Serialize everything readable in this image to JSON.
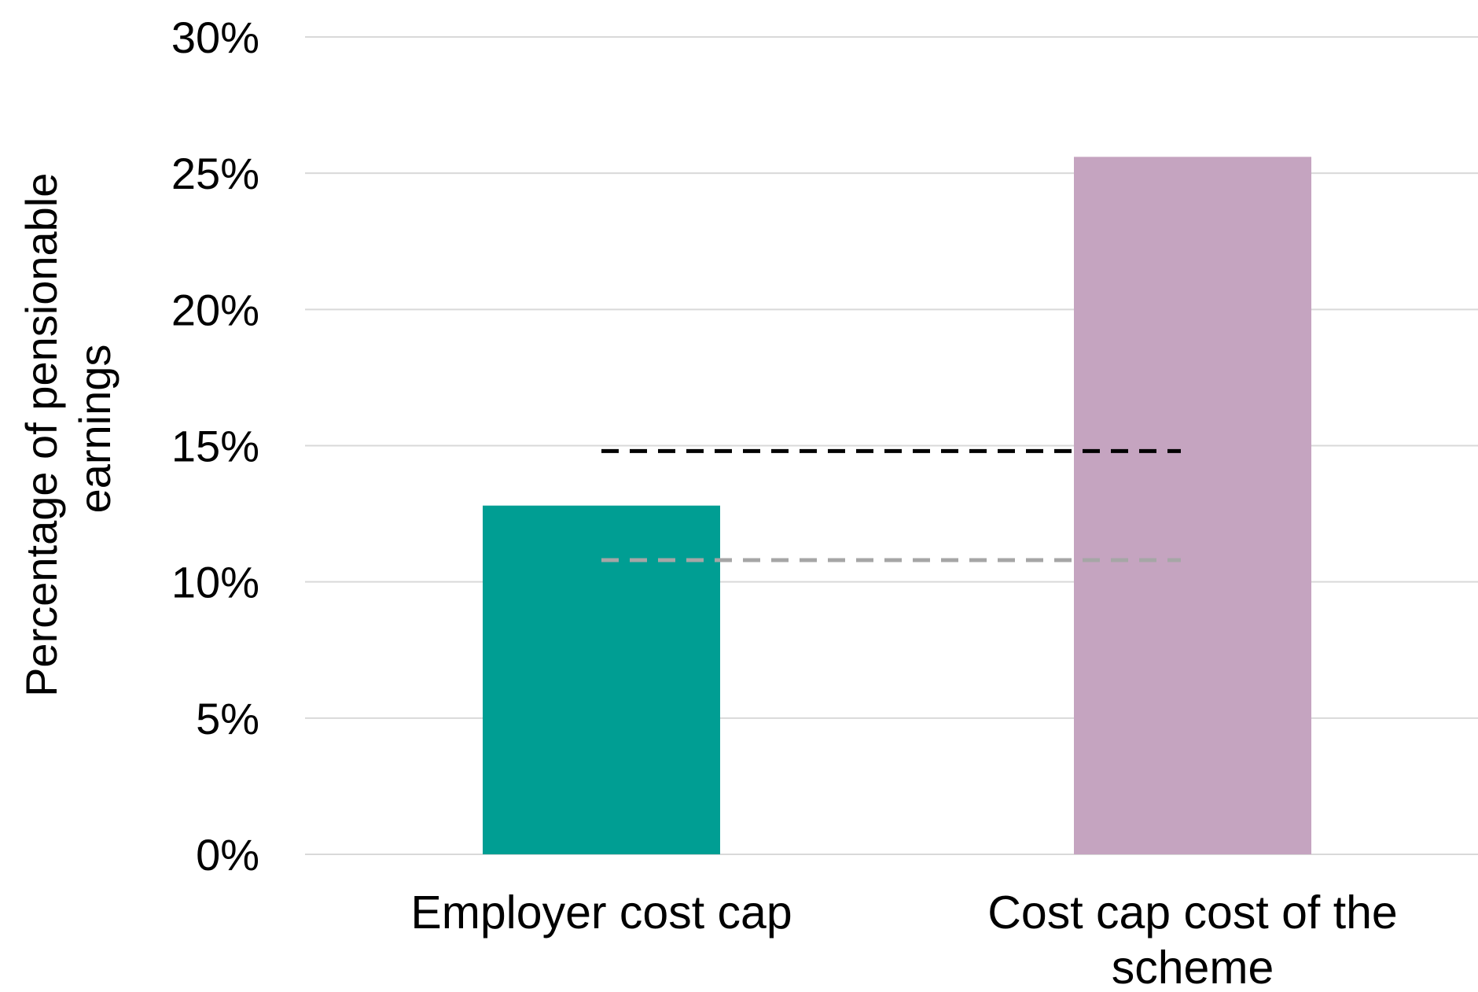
{
  "chart_data": {
    "type": "bar",
    "title": "",
    "xlabel": "",
    "ylabel_lines": [
      "Percentage of pensionable",
      "earnings"
    ],
    "categories": [
      "Employer cost cap",
      "Cost cap cost of the scheme"
    ],
    "category_label_lines": [
      [
        "Employer cost cap"
      ],
      [
        "Cost cap cost of the",
        "scheme"
      ]
    ],
    "values": [
      12.8,
      25.6
    ],
    "bar_colors": [
      "#009e93",
      "#c5a4c0"
    ],
    "ylim": [
      0,
      30
    ],
    "yticks": [
      0,
      5,
      10,
      15,
      20,
      25,
      30
    ],
    "ytick_labels": [
      "0%",
      "5%",
      "10%",
      "15%",
      "20%",
      "25%",
      "30%"
    ],
    "grid": true,
    "legend": "none",
    "reference_lines": [
      {
        "value": 14.8,
        "color": "#000000",
        "style": "dashed"
      },
      {
        "value": 10.8,
        "color": "#a6a6a6",
        "style": "dashed"
      }
    ]
  }
}
